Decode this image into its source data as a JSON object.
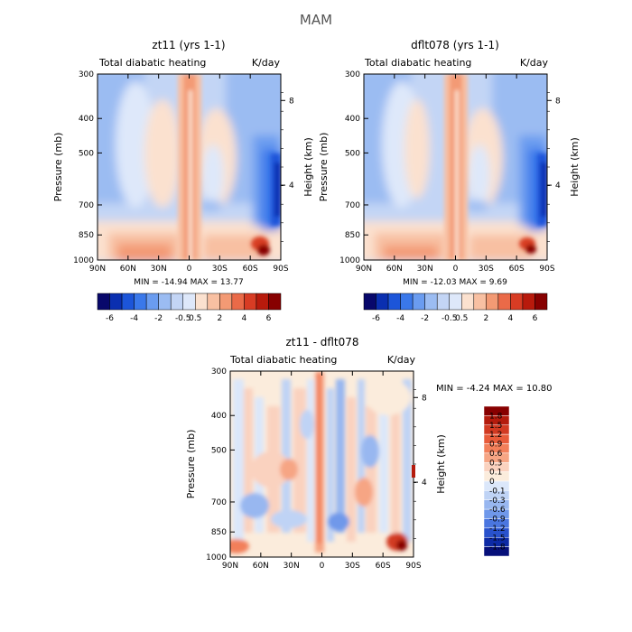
{
  "figure_title": "MAM",
  "chart_data": [
    {
      "type": "heatmap",
      "title": "zt11 (yrs 1-1)",
      "left_string": "Total diabatic heating",
      "right_string": "K/day",
      "ylabel": "Pressure (mb)",
      "y2label": "Height (km)",
      "x_ticks": [
        "90N",
        "60N",
        "30N",
        "0",
        "30S",
        "60S",
        "90S"
      ],
      "y_ticks": [
        "300",
        "400",
        "500",
        "700",
        "850",
        "1000"
      ],
      "y_tick_values": [
        300,
        400,
        500,
        700,
        850,
        1000
      ],
      "y2_ticks": [
        "8",
        "4"
      ],
      "y2_tick_values": [
        356,
        616
      ],
      "ylim": [
        300,
        1000
      ],
      "min_max": "MIN = -14.94   MAX =  13.77",
      "colorbar_labels": [
        "-6",
        "-4",
        "-2",
        "-0.5",
        "0.5",
        "2",
        "4",
        "6"
      ]
    },
    {
      "type": "heatmap",
      "title": "dflt078 (yrs 1-1)",
      "left_string": "Total diabatic heating",
      "right_string": "K/day",
      "ylabel": "Pressure (mb)",
      "y2label": "Height (km)",
      "x_ticks": [
        "90N",
        "60N",
        "30N",
        "0",
        "30S",
        "60S",
        "90S"
      ],
      "y_ticks": [
        "300",
        "400",
        "500",
        "700",
        "850",
        "1000"
      ],
      "y_tick_values": [
        300,
        400,
        500,
        700,
        850,
        1000
      ],
      "y2_ticks": [
        "8",
        "4"
      ],
      "y2_tick_values": [
        356,
        616
      ],
      "ylim": [
        300,
        1000
      ],
      "min_max": "MIN = -12.03   MAX =   9.69",
      "colorbar_labels": [
        "-6",
        "-4",
        "-2",
        "-0.5",
        "0.5",
        "2",
        "4",
        "6"
      ]
    },
    {
      "type": "heatmap",
      "title": "zt11 - dflt078",
      "left_string": "Total diabatic heating",
      "right_string": "K/day",
      "ylabel": "Pressure (mb)",
      "y2label": "Height (km)",
      "x_ticks": [
        "90N",
        "60N",
        "30N",
        "0",
        "30S",
        "60S",
        "90S"
      ],
      "y_ticks": [
        "300",
        "400",
        "500",
        "700",
        "850",
        "1000"
      ],
      "y_tick_values": [
        300,
        400,
        500,
        700,
        850,
        1000
      ],
      "y2_ticks": [
        "8",
        "4"
      ],
      "y2_tick_values": [
        356,
        616
      ],
      "ylim": [
        300,
        1000
      ],
      "min_max": "MIN =   -4.24    MAX =   10.80",
      "colorbar_labels": [
        "1.8",
        "1.5",
        "1.2",
        "0.9",
        "0.6",
        "0.3",
        "0.1",
        "0",
        "-0.1",
        "-0.3",
        "-0.6",
        "-0.9",
        "-1.2",
        "-1.5",
        "-1.8"
      ]
    }
  ],
  "colors": {
    "abs_scale": [
      "#08086b",
      "#0a2fb0",
      "#1c55d9",
      "#3a78ea",
      "#6a9cf0",
      "#9bbcf2",
      "#c3d5f5",
      "#dee8fa",
      "#fbe1cf",
      "#f8c0a2",
      "#f39a74",
      "#ea6a48",
      "#d83c24",
      "#b81a0c",
      "#870000"
    ],
    "diff_scale": [
      "#870000",
      "#b41b0d",
      "#d23a22",
      "#e85b3a",
      "#f27f5a",
      "#f6a584",
      "#fad2bf",
      "#fbecdc",
      "#dbe7fa",
      "#bfd3f5",
      "#98b7f0",
      "#6f98ea",
      "#4a76e0",
      "#2952cc",
      "#0d2aa5",
      "#06107a"
    ]
  }
}
